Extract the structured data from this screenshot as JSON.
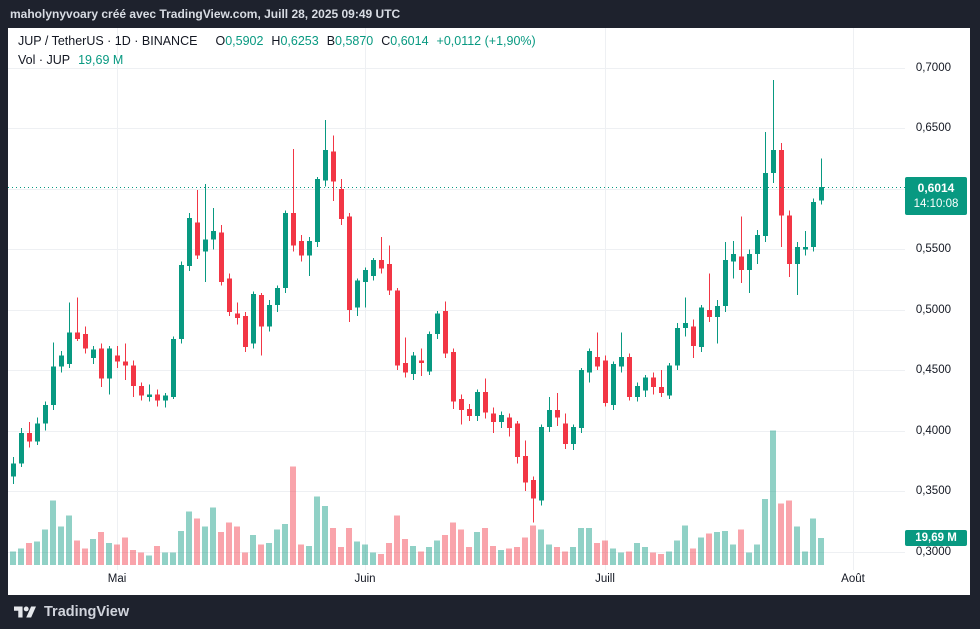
{
  "top_bar": {
    "text": "maholynyvoary créé avec TradingView.com, Juill 28, 2025 09:49 UTC"
  },
  "legend": {
    "symbol_line": "JUP / TetherUS · 1D · BINANCE",
    "ohlc": [
      {
        "label": "O",
        "value": "0,5902"
      },
      {
        "label": "H",
        "value": "0,6253"
      },
      {
        "label": "B",
        "value": "0,5870"
      },
      {
        "label": "C",
        "value": "0,6014"
      }
    ],
    "change": "+0,0112 (+1,90%)",
    "volume_label": "Vol · JUP",
    "volume_value": "19,69 M"
  },
  "price_line": {
    "value": 0.6014,
    "label": "0,6014",
    "countdown": "14:10:08"
  },
  "volume_badge": {
    "label": "19,69 M",
    "value_m": 19.69
  },
  "footer": {
    "brand": "TradingView"
  },
  "colors": {
    "up": "#089981",
    "down": "#F23645",
    "vol_up": "rgba(8,153,129,0.45)",
    "vol_down": "rgba(242,54,69,0.45)",
    "grid": "#eef0f3",
    "frame": "#1e222d",
    "panel": "#ffffff",
    "text_dark": "#131722",
    "badge": "#089981"
  },
  "price_scale": {
    "ticks": [
      {
        "label": "0,7000",
        "value": 0.7
      },
      {
        "label": "0,6500",
        "value": 0.65
      },
      {
        "label": "0,6000",
        "value": 0.6
      },
      {
        "label": "0,5500",
        "value": 0.55
      },
      {
        "label": "0,5000",
        "value": 0.5
      },
      {
        "label": "0,4500",
        "value": 0.45
      },
      {
        "label": "0,4000",
        "value": 0.4
      },
      {
        "label": "0,3500",
        "value": 0.35
      },
      {
        "label": "0,3000",
        "value": 0.3
      }
    ]
  },
  "time_scale": {
    "months": [
      {
        "label": "Mai",
        "index": 13
      },
      {
        "label": "Juin",
        "index": 44
      },
      {
        "label": "Juill",
        "index": 74
      },
      {
        "label": "Août",
        "index": 105
      }
    ]
  },
  "chart_data": {
    "type": "candlestick",
    "symbol": "JUP / TetherUS",
    "interval": "1D",
    "exchange": "BINANCE",
    "start_date": "2025-04-18",
    "end_date": "2025-07-28",
    "ylim": [
      0.3,
      0.7
    ],
    "last": {
      "open": 0.5902,
      "high": 0.6253,
      "low": 0.587,
      "close": 0.6014,
      "change": 0.0112,
      "change_pct": 1.9,
      "volume_m": 19.69
    },
    "candles": [
      [
        0.362,
        0.378,
        0.356,
        0.373
      ],
      [
        0.373,
        0.402,
        0.37,
        0.398
      ],
      [
        0.398,
        0.407,
        0.386,
        0.391
      ],
      [
        0.391,
        0.411,
        0.388,
        0.406
      ],
      [
        0.406,
        0.424,
        0.4,
        0.421
      ],
      [
        0.421,
        0.473,
        0.417,
        0.453
      ],
      [
        0.453,
        0.466,
        0.448,
        0.462
      ],
      [
        0.455,
        0.506,
        0.452,
        0.481
      ],
      [
        0.481,
        0.51,
        0.474,
        0.476
      ],
      [
        0.48,
        0.486,
        0.464,
        0.468
      ],
      [
        0.46,
        0.47,
        0.455,
        0.467
      ],
      [
        0.468,
        0.472,
        0.436,
        0.443
      ],
      [
        0.443,
        0.47,
        0.43,
        0.468
      ],
      [
        0.462,
        0.47,
        0.452,
        0.457
      ],
      [
        0.457,
        0.472,
        0.442,
        0.454
      ],
      [
        0.454,
        0.458,
        0.428,
        0.437
      ],
      [
        0.437,
        0.44,
        0.425,
        0.429
      ],
      [
        0.428,
        0.438,
        0.424,
        0.43
      ],
      [
        0.43,
        0.434,
        0.42,
        0.425
      ],
      [
        0.425,
        0.431,
        0.419,
        0.429
      ],
      [
        0.428,
        0.478,
        0.426,
        0.476
      ],
      [
        0.476,
        0.54,
        0.472,
        0.537
      ],
      [
        0.536,
        0.58,
        0.532,
        0.576
      ],
      [
        0.572,
        0.599,
        0.542,
        0.545
      ],
      [
        0.548,
        0.604,
        0.523,
        0.558
      ],
      [
        0.558,
        0.584,
        0.55,
        0.565
      ],
      [
        0.564,
        0.57,
        0.52,
        0.523
      ],
      [
        0.526,
        0.53,
        0.495,
        0.498
      ],
      [
        0.497,
        0.506,
        0.488,
        0.493
      ],
      [
        0.495,
        0.498,
        0.465,
        0.469
      ],
      [
        0.472,
        0.515,
        0.468,
        0.513
      ],
      [
        0.512,
        0.514,
        0.462,
        0.486
      ],
      [
        0.486,
        0.508,
        0.482,
        0.504
      ],
      [
        0.504,
        0.52,
        0.498,
        0.518
      ],
      [
        0.518,
        0.582,
        0.514,
        0.58
      ],
      [
        0.58,
        0.633,
        0.548,
        0.553
      ],
      [
        0.557,
        0.562,
        0.54,
        0.545
      ],
      [
        0.545,
        0.56,
        0.528,
        0.557
      ],
      [
        0.556,
        0.61,
        0.552,
        0.608
      ],
      [
        0.607,
        0.657,
        0.602,
        0.632
      ],
      [
        0.631,
        0.644,
        0.59,
        0.606
      ],
      [
        0.6,
        0.608,
        0.57,
        0.575
      ],
      [
        0.577,
        0.58,
        0.49,
        0.5
      ],
      [
        0.502,
        0.526,
        0.495,
        0.524
      ],
      [
        0.523,
        0.535,
        0.502,
        0.533
      ],
      [
        0.528,
        0.543,
        0.524,
        0.541
      ],
      [
        0.541,
        0.56,
        0.53,
        0.534
      ],
      [
        0.538,
        0.553,
        0.512,
        0.516
      ],
      [
        0.516,
        0.518,
        0.45,
        0.454
      ],
      [
        0.456,
        0.477,
        0.444,
        0.448
      ],
      [
        0.447,
        0.465,
        0.442,
        0.462
      ],
      [
        0.458,
        0.468,
        0.445,
        0.456
      ],
      [
        0.449,
        0.482,
        0.446,
        0.48
      ],
      [
        0.48,
        0.499,
        0.476,
        0.497
      ],
      [
        0.499,
        0.507,
        0.46,
        0.464
      ],
      [
        0.465,
        0.468,
        0.418,
        0.424
      ],
      [
        0.426,
        0.43,
        0.405,
        0.417
      ],
      [
        0.418,
        0.422,
        0.408,
        0.412
      ],
      [
        0.412,
        0.434,
        0.408,
        0.432
      ],
      [
        0.432,
        0.443,
        0.41,
        0.415
      ],
      [
        0.414,
        0.419,
        0.398,
        0.407
      ],
      [
        0.407,
        0.416,
        0.402,
        0.413
      ],
      [
        0.411,
        0.414,
        0.395,
        0.402
      ],
      [
        0.406,
        0.408,
        0.373,
        0.378
      ],
      [
        0.379,
        0.392,
        0.35,
        0.357
      ],
      [
        0.359,
        0.362,
        0.324,
        0.344
      ],
      [
        0.342,
        0.405,
        0.338,
        0.403
      ],
      [
        0.403,
        0.428,
        0.399,
        0.417
      ],
      [
        0.417,
        0.431,
        0.404,
        0.411
      ],
      [
        0.406,
        0.414,
        0.385,
        0.389
      ],
      [
        0.389,
        0.405,
        0.384,
        0.403
      ],
      [
        0.402,
        0.452,
        0.398,
        0.45
      ],
      [
        0.448,
        0.468,
        0.44,
        0.466
      ],
      [
        0.461,
        0.481,
        0.45,
        0.453
      ],
      [
        0.458,
        0.462,
        0.42,
        0.423
      ],
      [
        0.421,
        0.457,
        0.417,
        0.455
      ],
      [
        0.453,
        0.481,
        0.448,
        0.461
      ],
      [
        0.461,
        0.464,
        0.425,
        0.428
      ],
      [
        0.428,
        0.44,
        0.424,
        0.437
      ],
      [
        0.433,
        0.446,
        0.428,
        0.444
      ],
      [
        0.444,
        0.448,
        0.43,
        0.436
      ],
      [
        0.436,
        0.45,
        0.428,
        0.431
      ],
      [
        0.429,
        0.456,
        0.426,
        0.454
      ],
      [
        0.454,
        0.489,
        0.45,
        0.485
      ],
      [
        0.485,
        0.51,
        0.478,
        0.489
      ],
      [
        0.486,
        0.492,
        0.46,
        0.47
      ],
      [
        0.469,
        0.504,
        0.465,
        0.502
      ],
      [
        0.5,
        0.53,
        0.49,
        0.494
      ],
      [
        0.494,
        0.508,
        0.472,
        0.503
      ],
      [
        0.503,
        0.556,
        0.498,
        0.541
      ],
      [
        0.54,
        0.557,
        0.526,
        0.546
      ],
      [
        0.544,
        0.577,
        0.522,
        0.533
      ],
      [
        0.533,
        0.55,
        0.514,
        0.546
      ],
      [
        0.546,
        0.566,
        0.538,
        0.562
      ],
      [
        0.561,
        0.647,
        0.556,
        0.613
      ],
      [
        0.613,
        0.69,
        0.605,
        0.632
      ],
      [
        0.632,
        0.638,
        0.552,
        0.578
      ],
      [
        0.578,
        0.582,
        0.527,
        0.538
      ],
      [
        0.538,
        0.556,
        0.512,
        0.552
      ],
      [
        0.55,
        0.565,
        0.545,
        0.552
      ],
      [
        0.552,
        0.592,
        0.548,
        0.589
      ],
      [
        0.5902,
        0.6253,
        0.587,
        0.6014
      ]
    ],
    "volumes_m": [
      10,
      12,
      16,
      17,
      26,
      47,
      28,
      36,
      18,
      12,
      19,
      24,
      16,
      15,
      20,
      11,
      9,
      7,
      14,
      9,
      9,
      25,
      39,
      34,
      28,
      42,
      24,
      31,
      28,
      9,
      22,
      15,
      16,
      26,
      30,
      72,
      15,
      14,
      50,
      43,
      27,
      13,
      27,
      17,
      15,
      9,
      8,
      16,
      36,
      19,
      14,
      10,
      13,
      18,
      22,
      31,
      26,
      13,
      24,
      27,
      14,
      11,
      12,
      13,
      20,
      29,
      26,
      15,
      13,
      10,
      13,
      27,
      27,
      16,
      18,
      12,
      9,
      10,
      16,
      13,
      9,
      8,
      10,
      18,
      29,
      12,
      20,
      23,
      24,
      25,
      15,
      26,
      9,
      15,
      48,
      98,
      45,
      47,
      28,
      10,
      34,
      19.69
    ]
  }
}
